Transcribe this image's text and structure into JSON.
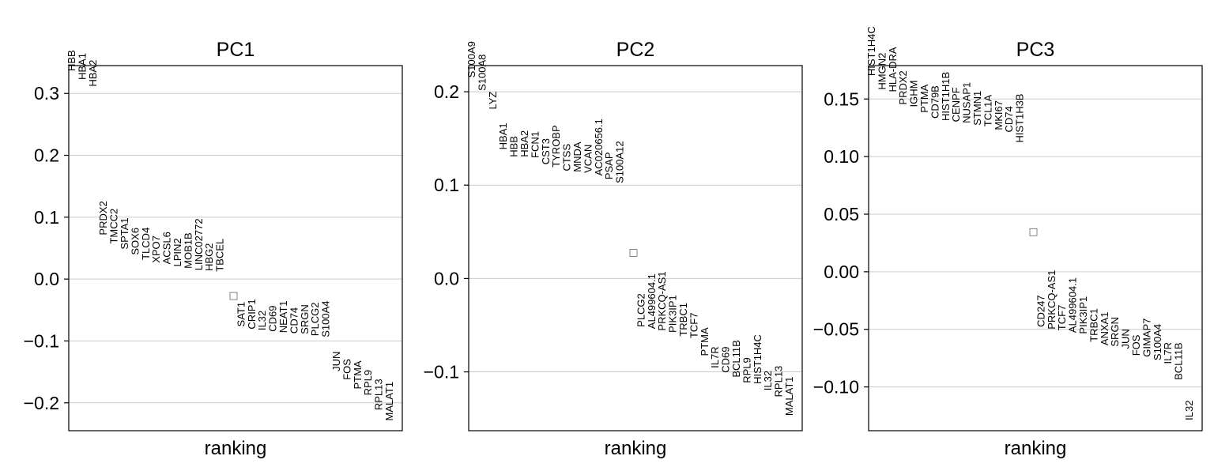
{
  "chart_data": [
    {
      "type": "scatter",
      "title": "PC1",
      "xlabel": "ranking",
      "ylim": [
        -0.245,
        0.345
      ],
      "yticks": [
        0.3,
        0.2,
        0.1,
        0.0,
        -0.1,
        -0.2
      ],
      "ytick_labels": [
        "0.3",
        "0.2",
        "0.1",
        "0.0",
        "−0.1",
        "−0.2"
      ],
      "grid": true,
      "middle_marker": -0.028,
      "top": [
        {
          "gene": "HBB",
          "score": 0.336
        },
        {
          "gene": "HBA1",
          "score": 0.322
        },
        {
          "gene": "HBA2",
          "score": 0.311
        },
        {
          "gene": "PRDX2",
          "score": 0.071
        },
        {
          "gene": "TMCC2",
          "score": 0.057
        },
        {
          "gene": "SPTA1",
          "score": 0.048
        },
        {
          "gene": "SOX6",
          "score": 0.039
        },
        {
          "gene": "TLCD4",
          "score": 0.031
        },
        {
          "gene": "XPO7",
          "score": 0.026
        },
        {
          "gene": "ACSL6",
          "score": 0.024
        },
        {
          "gene": "LPIN2",
          "score": 0.02
        },
        {
          "gene": "MOB1B",
          "score": 0.017
        },
        {
          "gene": "LINC02772",
          "score": 0.014
        },
        {
          "gene": "HBG2",
          "score": 0.013
        },
        {
          "gene": "TBCEL",
          "score": 0.012
        }
      ],
      "bottom": [
        {
          "gene": "SAT1",
          "score": -0.077
        },
        {
          "gene": "CRIP1",
          "score": -0.081
        },
        {
          "gene": "IL32",
          "score": -0.083
        },
        {
          "gene": "CD69",
          "score": -0.085
        },
        {
          "gene": "NEAT1",
          "score": -0.087
        },
        {
          "gene": "CD74",
          "score": -0.088
        },
        {
          "gene": "SRGN",
          "score": -0.089
        },
        {
          "gene": "PLCG2",
          "score": -0.092
        },
        {
          "gene": "S100A4",
          "score": -0.094
        },
        {
          "gene": "JUN",
          "score": -0.149
        },
        {
          "gene": "FOS",
          "score": -0.163
        },
        {
          "gene": "PTMA",
          "score": -0.178
        },
        {
          "gene": "RPL9",
          "score": -0.188
        },
        {
          "gene": "RPL13",
          "score": -0.212
        },
        {
          "gene": "MALAT1",
          "score": -0.229
        }
      ]
    },
    {
      "type": "scatter",
      "title": "PC2",
      "xlabel": "ranking",
      "ylim": [
        -0.163,
        0.228
      ],
      "yticks": [
        0.2,
        0.1,
        0.0,
        -0.1
      ],
      "ytick_labels": [
        "0.2",
        "0.1",
        "0.0",
        "−0.1"
      ],
      "grid": true,
      "middle_marker": 0.027,
      "top": [
        {
          "gene": "S100A9",
          "score": 0.215
        },
        {
          "gene": "S100A8",
          "score": 0.201
        },
        {
          "gene": "LYZ",
          "score": 0.181
        },
        {
          "gene": "HBA1",
          "score": 0.138
        },
        {
          "gene": "HBB",
          "score": 0.13
        },
        {
          "gene": "HBA2",
          "score": 0.13
        },
        {
          "gene": "FCN1",
          "score": 0.129
        },
        {
          "gene": "CST3",
          "score": 0.122
        },
        {
          "gene": "TYROBP",
          "score": 0.119
        },
        {
          "gene": "CTSS",
          "score": 0.115
        },
        {
          "gene": "MNDA",
          "score": 0.114
        },
        {
          "gene": "VCAN",
          "score": 0.113
        },
        {
          "gene": "AC020656.1",
          "score": 0.11
        },
        {
          "gene": "PSAP",
          "score": 0.106
        },
        {
          "gene": "S100A12",
          "score": 0.102
        }
      ],
      "bottom": [
        {
          "gene": "PLCG2",
          "score": -0.052
        },
        {
          "gene": "AL499604.1",
          "score": -0.054
        },
        {
          "gene": "PRKCQ-AS1",
          "score": -0.056
        },
        {
          "gene": "PIK3IP1",
          "score": -0.058
        },
        {
          "gene": "TRBC1",
          "score": -0.062
        },
        {
          "gene": "TCF7",
          "score": -0.064
        },
        {
          "gene": "PTMA",
          "score": -0.083
        },
        {
          "gene": "IL7R",
          "score": -0.096
        },
        {
          "gene": "CD69",
          "score": -0.101
        },
        {
          "gene": "BCL11B",
          "score": -0.106
        },
        {
          "gene": "RPL9",
          "score": -0.112
        },
        {
          "gene": "HIST1H4C",
          "score": -0.113
        },
        {
          "gene": "IL32",
          "score": -0.12
        },
        {
          "gene": "RPL13",
          "score": -0.127
        },
        {
          "gene": "MALAT1",
          "score": -0.147
        }
      ]
    },
    {
      "type": "scatter",
      "title": "PC3",
      "xlabel": "ranking",
      "ylim": [
        -0.138,
        0.179
      ],
      "yticks": [
        0.15,
        0.1,
        0.05,
        0.0,
        -0.05,
        -0.1
      ],
      "ytick_labels": [
        "0.15",
        "0.10",
        "0.05",
        "0.00",
        "−0.05",
        "−0.10"
      ],
      "grid": true,
      "middle_marker": 0.034,
      "top": [
        {
          "gene": "HIST1H4C",
          "score": 0.17
        },
        {
          "gene": "HMGN2",
          "score": 0.158
        },
        {
          "gene": "HLA-DRA",
          "score": 0.156
        },
        {
          "gene": "PRDX2",
          "score": 0.145
        },
        {
          "gene": "IGHM",
          "score": 0.143
        },
        {
          "gene": "PTMA",
          "score": 0.138
        },
        {
          "gene": "CD79B",
          "score": 0.133
        },
        {
          "gene": "HIST1H1B",
          "score": 0.131
        },
        {
          "gene": "CENPF",
          "score": 0.13
        },
        {
          "gene": "NUSAP1",
          "score": 0.129
        },
        {
          "gene": "STMN1",
          "score": 0.127
        },
        {
          "gene": "TCL1A",
          "score": 0.126
        },
        {
          "gene": "MKI67",
          "score": 0.123
        },
        {
          "gene": "CD74",
          "score": 0.121
        },
        {
          "gene": "HIST1H3B",
          "score": 0.112
        }
      ],
      "bottom": [
        {
          "gene": "CD247",
          "score": -0.048
        },
        {
          "gene": "PRKCQ-AS1",
          "score": -0.05
        },
        {
          "gene": "TCF7",
          "score": -0.051
        },
        {
          "gene": "AL499604.1",
          "score": -0.053
        },
        {
          "gene": "PIK3IP1",
          "score": -0.054
        },
        {
          "gene": "TRBC1",
          "score": -0.061
        },
        {
          "gene": "ANXA1",
          "score": -0.064
        },
        {
          "gene": "SRGN",
          "score": -0.065
        },
        {
          "gene": "JUN",
          "score": -0.067
        },
        {
          "gene": "FOS",
          "score": -0.073
        },
        {
          "gene": "GIMAP7",
          "score": -0.074
        },
        {
          "gene": "S100A4",
          "score": -0.077
        },
        {
          "gene": "IL7R",
          "score": -0.08
        },
        {
          "gene": "BCL11B",
          "score": -0.094
        },
        {
          "gene": "IL32",
          "score": -0.129
        }
      ]
    }
  ]
}
